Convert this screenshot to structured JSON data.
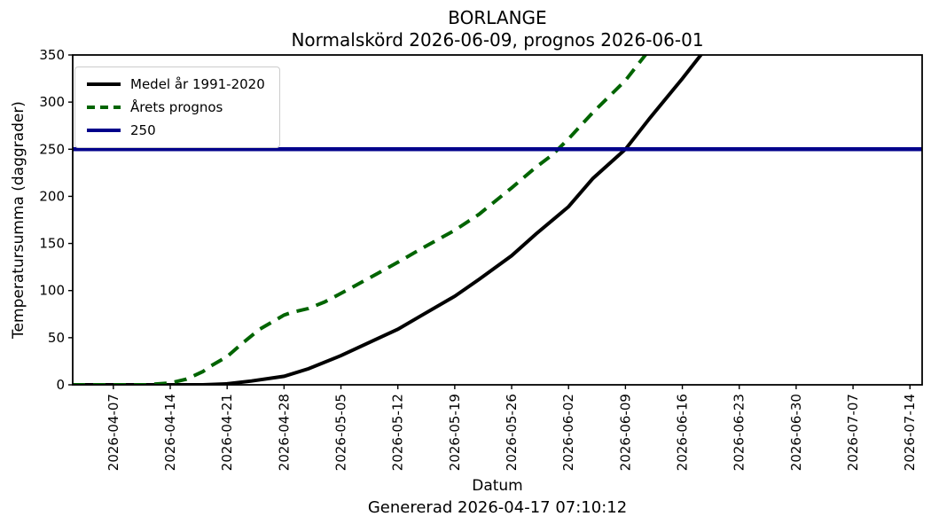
{
  "title": "BORLANGE",
  "subtitle": "Normalskörd 2026-06-09, prognos 2026-06-01",
  "footer": "Genererad 2026-04-17 07:10:12",
  "colors": {
    "mean_line": "#000000",
    "forecast_line": "#006400",
    "threshold_line": "#00008b",
    "legend_border": "#cccccc"
  },
  "legend": {
    "position": "upper left",
    "items": [
      {
        "id": "medel",
        "label": "Medel år 1991-2020",
        "color": "#000000",
        "style": "solid"
      },
      {
        "id": "prognos",
        "label": "Årets prognos",
        "color": "#006400",
        "style": "dashed"
      },
      {
        "id": "threshold",
        "label": "250",
        "color": "#00008b",
        "style": "solid"
      }
    ]
  },
  "chart_data": {
    "type": "line",
    "title": "BORLANGE",
    "subtitle": "Normalskörd 2026-06-09, prognos 2026-06-01",
    "xlabel": "Datum",
    "ylabel": "Temperatursumma (daggrader)",
    "grid": false,
    "legend_position": "upper left",
    "x_axis_note": "x values are day offsets from 2026-04-02 (left edge of plot)",
    "xlim": [
      0,
      104.5
    ],
    "ylim": [
      0,
      350
    ],
    "y_ticks": [
      0,
      50,
      100,
      150,
      200,
      250,
      300,
      350
    ],
    "x_ticks": [
      {
        "day": 5,
        "label": "2026-04-07"
      },
      {
        "day": 12,
        "label": "2026-04-14"
      },
      {
        "day": 19,
        "label": "2026-04-21"
      },
      {
        "day": 26,
        "label": "2026-04-28"
      },
      {
        "day": 33,
        "label": "2026-05-05"
      },
      {
        "day": 40,
        "label": "2026-05-12"
      },
      {
        "day": 47,
        "label": "2026-05-19"
      },
      {
        "day": 54,
        "label": "2026-05-26"
      },
      {
        "day": 61,
        "label": "2026-06-02"
      },
      {
        "day": 68,
        "label": "2026-06-09"
      },
      {
        "day": 75,
        "label": "2026-06-16"
      },
      {
        "day": 82,
        "label": "2026-06-23"
      },
      {
        "day": 89,
        "label": "2026-06-30"
      },
      {
        "day": 96,
        "label": "2026-07-07"
      },
      {
        "day": 103,
        "label": "2026-07-14"
      }
    ],
    "series": [
      {
        "id": "medel",
        "name": "Medel år 1991-2020",
        "color": "#000000",
        "style": "solid",
        "width": 4,
        "points": [
          [
            0,
            0
          ],
          [
            5,
            0
          ],
          [
            12,
            0
          ],
          [
            16,
            0
          ],
          [
            19,
            1
          ],
          [
            22,
            4
          ],
          [
            26,
            9
          ],
          [
            29,
            17
          ],
          [
            33,
            31
          ],
          [
            36,
            43
          ],
          [
            40,
            59
          ],
          [
            43,
            74
          ],
          [
            47,
            94
          ],
          [
            50,
            112
          ],
          [
            54,
            137
          ],
          [
            57,
            160
          ],
          [
            61,
            189
          ],
          [
            64,
            219
          ],
          [
            68,
            250
          ],
          [
            71,
            283
          ],
          [
            75,
            325
          ],
          [
            78,
            358
          ]
        ]
      },
      {
        "id": "prognos",
        "name": "Årets prognos",
        "color": "#006400",
        "style": "dashed",
        "width": 4,
        "points": [
          [
            0,
            0
          ],
          [
            5,
            0
          ],
          [
            9,
            0
          ],
          [
            12,
            2
          ],
          [
            14,
            6
          ],
          [
            16,
            14
          ],
          [
            17,
            20
          ],
          [
            19,
            30
          ],
          [
            21,
            45
          ],
          [
            23,
            59
          ],
          [
            25,
            69
          ],
          [
            26,
            74
          ],
          [
            27,
            77
          ],
          [
            29,
            81
          ],
          [
            31,
            88
          ],
          [
            33,
            97
          ],
          [
            36,
            111
          ],
          [
            40,
            130
          ],
          [
            43,
            145
          ],
          [
            47,
            164
          ],
          [
            50,
            181
          ],
          [
            54,
            209
          ],
          [
            57,
            231
          ],
          [
            59,
            244
          ],
          [
            61,
            261
          ],
          [
            64,
            289
          ],
          [
            68,
            323
          ],
          [
            71,
            356
          ]
        ]
      },
      {
        "id": "threshold",
        "name": "250",
        "color": "#00008b",
        "style": "solid",
        "width": 4.5,
        "type": "hline",
        "y": 250
      }
    ]
  }
}
